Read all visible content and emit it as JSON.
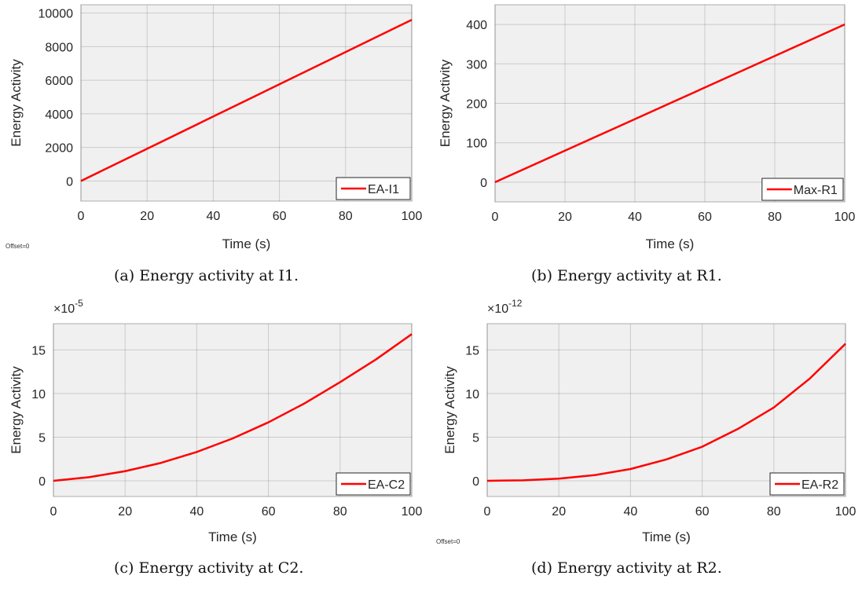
{
  "captions": [
    "(a) Energy activity at I1.",
    "(b) Energy activity at R1.",
    "(c) Energy activity at C2.",
    "(d) Energy activity at R2."
  ],
  "offset_labels": [
    "Offset=0",
    "Offset=0"
  ],
  "colors": {
    "line": "#ff0000",
    "plot_bg": "#f0f0f0",
    "grid": "#262626"
  },
  "chart_data": [
    {
      "type": "line",
      "xlabel": "Time (s)",
      "ylabel": "Energy Activity",
      "xlim": [
        0,
        100
      ],
      "ylim": [
        -1200,
        10500
      ],
      "xticks": [
        0,
        20,
        40,
        60,
        80,
        100
      ],
      "yticks": [
        0,
        2000,
        4000,
        6000,
        8000,
        10000
      ],
      "exponent": "",
      "grid": true,
      "legend_position": "bottom-right",
      "series": [
        {
          "name": "EA-I1",
          "x": [
            0,
            20,
            40,
            60,
            80,
            100
          ],
          "y": [
            0,
            1920,
            3840,
            5760,
            7680,
            9600
          ]
        }
      ]
    },
    {
      "type": "line",
      "xlabel": "Time (s)",
      "ylabel": "Energy Activity",
      "xlim": [
        0,
        100
      ],
      "ylim": [
        -50,
        450
      ],
      "xticks": [
        0,
        20,
        40,
        60,
        80,
        100
      ],
      "yticks": [
        0,
        100,
        200,
        300,
        400
      ],
      "exponent": "",
      "grid": true,
      "legend_position": "bottom-right",
      "series": [
        {
          "name": "Max-R1",
          "x": [
            0,
            20,
            40,
            60,
            80,
            100
          ],
          "y": [
            0,
            80,
            160,
            240,
            320,
            400
          ]
        }
      ]
    },
    {
      "type": "line",
      "xlabel": "Time (s)",
      "ylabel": "Energy Activity",
      "xlim": [
        0,
        100
      ],
      "ylim": [
        -1.8,
        18
      ],
      "xticks": [
        0,
        20,
        40,
        60,
        80,
        100
      ],
      "yticks": [
        0,
        5,
        10,
        15
      ],
      "exponent": "-5",
      "grid": true,
      "legend_position": "bottom-right",
      "series": [
        {
          "name": "EA-C2",
          "x": [
            0,
            10,
            20,
            30,
            40,
            50,
            60,
            70,
            80,
            90,
            100
          ],
          "y": [
            0,
            0.42,
            1.1,
            2.05,
            3.3,
            4.85,
            6.7,
            8.85,
            11.3,
            13.9,
            16.8
          ]
        }
      ]
    },
    {
      "type": "line",
      "xlabel": "Time (s)",
      "ylabel": "Energy Activity",
      "xlim": [
        0,
        100
      ],
      "ylim": [
        -1.8,
        18
      ],
      "xticks": [
        0,
        20,
        40,
        60,
        80,
        100
      ],
      "yticks": [
        0,
        5,
        10,
        15
      ],
      "exponent": "-12",
      "grid": true,
      "legend_position": "bottom-right",
      "series": [
        {
          "name": "EA-R2",
          "x": [
            0,
            10,
            20,
            30,
            40,
            50,
            60,
            70,
            80,
            90,
            100
          ],
          "y": [
            0,
            0.06,
            0.25,
            0.65,
            1.35,
            2.45,
            3.9,
            5.95,
            8.4,
            11.7,
            15.7
          ]
        }
      ]
    }
  ]
}
